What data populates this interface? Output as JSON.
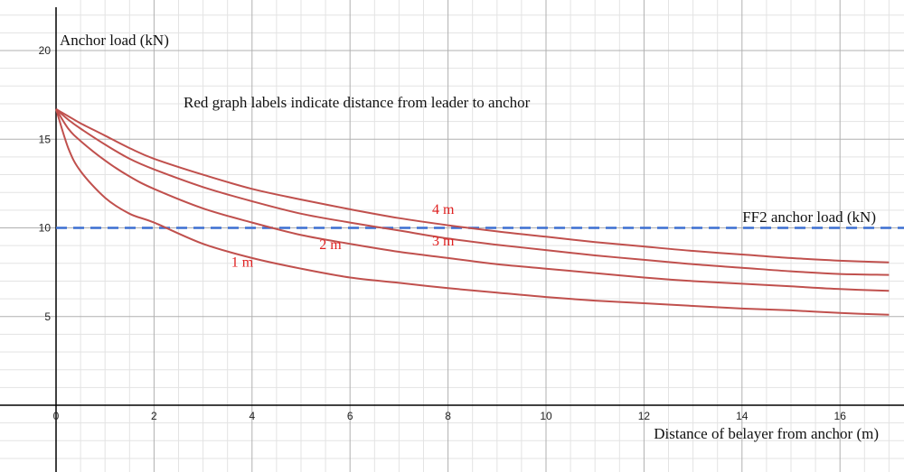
{
  "chart_data": {
    "type": "line",
    "title": "",
    "xlabel": "Distance of belayer from anchor (m)",
    "ylabel": "Anchor load (kN)",
    "xlim": [
      0,
      17
    ],
    "ylim": [
      -3,
      22
    ],
    "x_ticks": [
      0,
      2,
      4,
      6,
      8,
      10,
      12,
      14,
      16
    ],
    "y_ticks": [
      5,
      10,
      15,
      20
    ],
    "grid": true,
    "note": "Red graph labels indicate distance from leader to anchor",
    "x": [
      0,
      0.25,
      0.5,
      1,
      1.5,
      2,
      3,
      4,
      5,
      6,
      7,
      8,
      9,
      10,
      11,
      12,
      13,
      14,
      15,
      16,
      17
    ],
    "series": [
      {
        "name": "1 m",
        "color": "#c0504d",
        "values": [
          16.7,
          14.5,
          13.2,
          11.7,
          10.8,
          10.3,
          9.1,
          8.3,
          7.7,
          7.2,
          6.9,
          6.6,
          6.35,
          6.1,
          5.9,
          5.75,
          5.6,
          5.45,
          5.35,
          5.2,
          5.1
        ]
      },
      {
        "name": "2 m",
        "color": "#c0504d",
        "values": [
          16.7,
          15.6,
          14.9,
          13.8,
          12.9,
          12.2,
          11.1,
          10.3,
          9.6,
          9.1,
          8.65,
          8.3,
          7.95,
          7.7,
          7.45,
          7.2,
          7.0,
          6.85,
          6.7,
          6.55,
          6.45
        ]
      },
      {
        "name": "3 m",
        "color": "#c0504d",
        "values": [
          16.7,
          16.1,
          15.6,
          14.7,
          13.9,
          13.3,
          12.3,
          11.5,
          10.8,
          10.3,
          9.85,
          9.4,
          9.05,
          8.75,
          8.45,
          8.2,
          7.95,
          7.75,
          7.55,
          7.4,
          7.35
        ]
      },
      {
        "name": "4 m",
        "color": "#c0504d",
        "values": [
          16.7,
          16.3,
          15.9,
          15.2,
          14.5,
          13.9,
          13.0,
          12.2,
          11.6,
          11.05,
          10.55,
          10.15,
          9.8,
          9.5,
          9.2,
          8.95,
          8.7,
          8.5,
          8.3,
          8.15,
          8.05
        ]
      }
    ],
    "series_labels": [
      {
        "name": "1 m",
        "x": 3.8,
        "y": 7.8
      },
      {
        "name": "2 m",
        "x": 5.6,
        "y": 8.8
      },
      {
        "name": "3 m",
        "x": 7.9,
        "y": 9.0
      },
      {
        "name": "4 m",
        "x": 7.9,
        "y": 10.8
      }
    ],
    "reference_line": {
      "label": "FF2 anchor load (kN)",
      "y": 10,
      "color": "#3c6fd1"
    },
    "colors": {
      "grid_major": "#b0b0b0",
      "grid_minor": "#e3e3e3",
      "axis": "#000000",
      "series_label": "#e02020"
    }
  }
}
